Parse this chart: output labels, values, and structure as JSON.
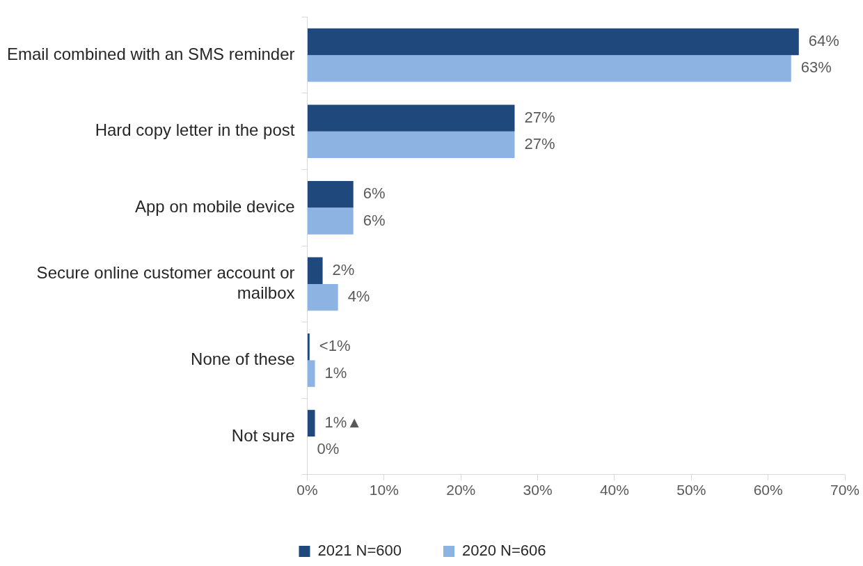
{
  "chart_data": {
    "type": "bar",
    "orientation": "horizontal",
    "categories": [
      "Email combined with an SMS reminder",
      "Hard copy letter in the post",
      "App on mobile device",
      "Secure online customer account or mailbox",
      "None of these",
      "Not sure"
    ],
    "series": [
      {
        "name": "2021 N=600",
        "color": "#1f497d",
        "values": [
          64,
          27,
          6,
          2,
          0.3,
          1
        ],
        "value_labels": [
          "64%",
          "27%",
          "6%",
          "2%",
          "<1%",
          "1%▲"
        ]
      },
      {
        "name": "2020 N=606",
        "color": "#8db3e2",
        "values": [
          63,
          27,
          6,
          4,
          1,
          0
        ],
        "value_labels": [
          "63%",
          "27%",
          "6%",
          "4%",
          "1%",
          "0%"
        ]
      }
    ],
    "xlim": [
      0,
      70
    ],
    "xticks": [
      {
        "value": 0,
        "label": "0%"
      },
      {
        "value": 10,
        "label": "10%"
      },
      {
        "value": 20,
        "label": "20%"
      },
      {
        "value": 30,
        "label": "30%"
      },
      {
        "value": 40,
        "label": "40%"
      },
      {
        "value": 50,
        "label": "50%"
      },
      {
        "value": 60,
        "label": "60%"
      },
      {
        "value": 70,
        "label": "70%"
      }
    ],
    "grid": false,
    "legend": "bottom"
  }
}
